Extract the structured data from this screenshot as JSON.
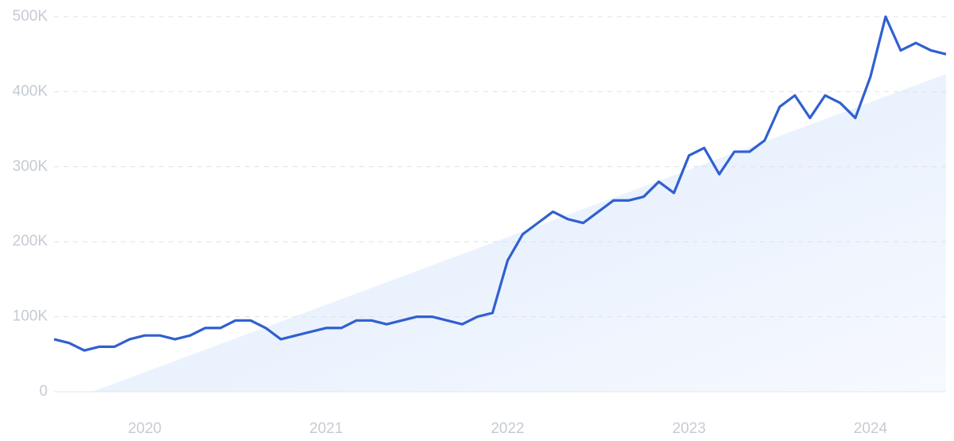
{
  "chart_data": {
    "type": "line",
    "categories": [
      null,
      null,
      null,
      null,
      null,
      null,
      "2020",
      null,
      null,
      null,
      null,
      null,
      null,
      null,
      null,
      null,
      null,
      null,
      "2021",
      null,
      null,
      null,
      null,
      null,
      null,
      null,
      null,
      null,
      null,
      null,
      "2022",
      null,
      null,
      null,
      null,
      null,
      null,
      null,
      null,
      null,
      null,
      null,
      "2023",
      null,
      null,
      null,
      null,
      null,
      null,
      null,
      null,
      null,
      null,
      null,
      "2024",
      null,
      null,
      null,
      null,
      null
    ],
    "series": [
      {
        "type": "area",
        "color": "#dde9fb",
        "values": [
          -19,
          -11.5,
          -4,
          3.5,
          11,
          18.5,
          26,
          33.5,
          41,
          48.5,
          56,
          63.5,
          71,
          78.5,
          86,
          93.5,
          101,
          108.5,
          116,
          123.5,
          131,
          138.5,
          146,
          153.5,
          161,
          168.5,
          176,
          183.5,
          191,
          198.5,
          206,
          213.5,
          221,
          228.5,
          236,
          243.5,
          251,
          258.5,
          266,
          273.5,
          281,
          288.5,
          296,
          303.5,
          311,
          318.5,
          326,
          333.5,
          341,
          348.5,
          356,
          363.5,
          371,
          378.5,
          386,
          393.5,
          401,
          408.5,
          416,
          423.5
        ]
      },
      {
        "type": "line",
        "color": "#3060d0",
        "values": [
          70,
          65,
          55,
          60,
          60,
          70,
          75,
          75,
          70,
          75,
          85,
          85,
          95,
          95,
          85,
          70,
          75,
          80,
          85,
          85,
          95,
          95,
          90,
          95,
          100,
          100,
          95,
          90,
          100,
          105,
          175,
          210,
          225,
          240,
          230,
          225,
          240,
          255,
          255,
          260,
          280,
          265,
          315,
          325,
          290,
          320,
          320,
          335,
          380,
          395,
          365,
          395,
          385,
          365,
          420,
          500,
          455,
          465,
          455,
          450
        ]
      }
    ],
    "ylim": [
      0,
      500
    ],
    "yticks": [
      0,
      {
        "value": 100,
        "label": "100K"
      },
      {
        "value": 200,
        "label": "200K"
      },
      {
        "value": 300,
        "label": "300K"
      },
      {
        "value": 400,
        "label": "400K"
      },
      {
        "value": 500,
        "label": "500K"
      }
    ],
    "grid": true
  }
}
